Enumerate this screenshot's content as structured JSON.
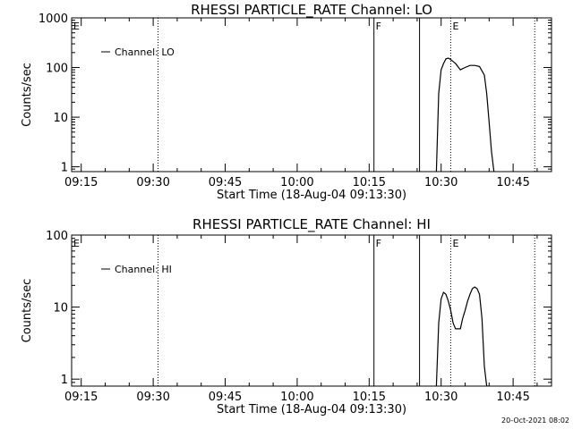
{
  "footer_timestamp": "20-Oct-2021 08:02",
  "chart_data": [
    {
      "type": "line",
      "title": "RHESSI PARTICLE_RATE Channel: LO",
      "xlabel": "Start Time (18-Aug-04 09:13:30)",
      "ylabel": "Counts/sec",
      "yscale": "log",
      "xlim": [
        "09:13",
        "10:53"
      ],
      "ylim": [
        0.8,
        1000
      ],
      "yticks": [
        1,
        10,
        100,
        1000
      ],
      "ytick_labels": [
        "1",
        "10",
        "100",
        "1000"
      ],
      "xticks": [
        "09:15",
        "09:30",
        "09:45",
        "10:00",
        "10:15",
        "10:30",
        "10:45"
      ],
      "legend": {
        "placement": "top-left",
        "entries": [
          "Channel: LO"
        ]
      },
      "grid": false,
      "markers": [
        {
          "time": "09:31",
          "style": "dotted",
          "label": ""
        },
        {
          "time": "10:16",
          "style": "solid",
          "label": "F"
        },
        {
          "time": "10:25.5",
          "style": "solid",
          "label": ""
        },
        {
          "time": "10:32",
          "style": "dotted",
          "label": "E"
        },
        {
          "time": "10:49.5",
          "style": "dotted",
          "label": ""
        }
      ],
      "corner_label": "E",
      "series": [
        {
          "name": "Channel: LO",
          "x": [
            "10:29",
            "10:29.5",
            "10:30",
            "10:30.5",
            "10:31",
            "10:31.5",
            "10:32",
            "10:33",
            "10:34",
            "10:35",
            "10:36",
            "10:37",
            "10:38",
            "10:39",
            "10:39.5",
            "10:40",
            "10:40.5",
            "10:41"
          ],
          "y": [
            0.8,
            30,
            90,
            120,
            150,
            155,
            145,
            120,
            90,
            100,
            110,
            110,
            105,
            70,
            30,
            8,
            2,
            0.8
          ]
        }
      ]
    },
    {
      "type": "line",
      "title": "RHESSI PARTICLE_RATE Channel: HI",
      "xlabel": "Start Time (18-Aug-04 09:13:30)",
      "ylabel": "Counts/sec",
      "yscale": "log",
      "xlim": [
        "09:13",
        "10:53"
      ],
      "ylim": [
        0.8,
        100
      ],
      "yticks": [
        1,
        10,
        100
      ],
      "ytick_labels": [
        "1",
        "10",
        "100"
      ],
      "xticks": [
        "09:15",
        "09:30",
        "09:45",
        "10:00",
        "10:15",
        "10:30",
        "10:45"
      ],
      "legend": {
        "placement": "top-left",
        "entries": [
          "Channel: HI"
        ]
      },
      "grid": false,
      "markers": [
        {
          "time": "09:31",
          "style": "dotted",
          "label": ""
        },
        {
          "time": "10:16",
          "style": "solid",
          "label": "F"
        },
        {
          "time": "10:25.5",
          "style": "solid",
          "label": ""
        },
        {
          "time": "10:32",
          "style": "dotted",
          "label": "E"
        },
        {
          "time": "10:49.5",
          "style": "dotted",
          "label": ""
        }
      ],
      "corner_label": "E",
      "series": [
        {
          "name": "Channel: HI",
          "x": [
            "10:29",
            "10:29.5",
            "10:30",
            "10:30.5",
            "10:31",
            "10:31.5",
            "10:32",
            "10:32.5",
            "10:33",
            "10:33.5",
            "10:34",
            "10:34.5",
            "10:35",
            "10:35.5",
            "10:36",
            "10:36.5",
            "10:37",
            "10:37.5",
            "10:38",
            "10:38.5",
            "10:39",
            "10:39.5",
            "10:40"
          ],
          "y": [
            0.8,
            6,
            13,
            16,
            15,
            12,
            9,
            6,
            5,
            5,
            5,
            7,
            9,
            12,
            15,
            18,
            19,
            18,
            15,
            7,
            1.5,
            0.8,
            0.8
          ]
        }
      ]
    }
  ]
}
